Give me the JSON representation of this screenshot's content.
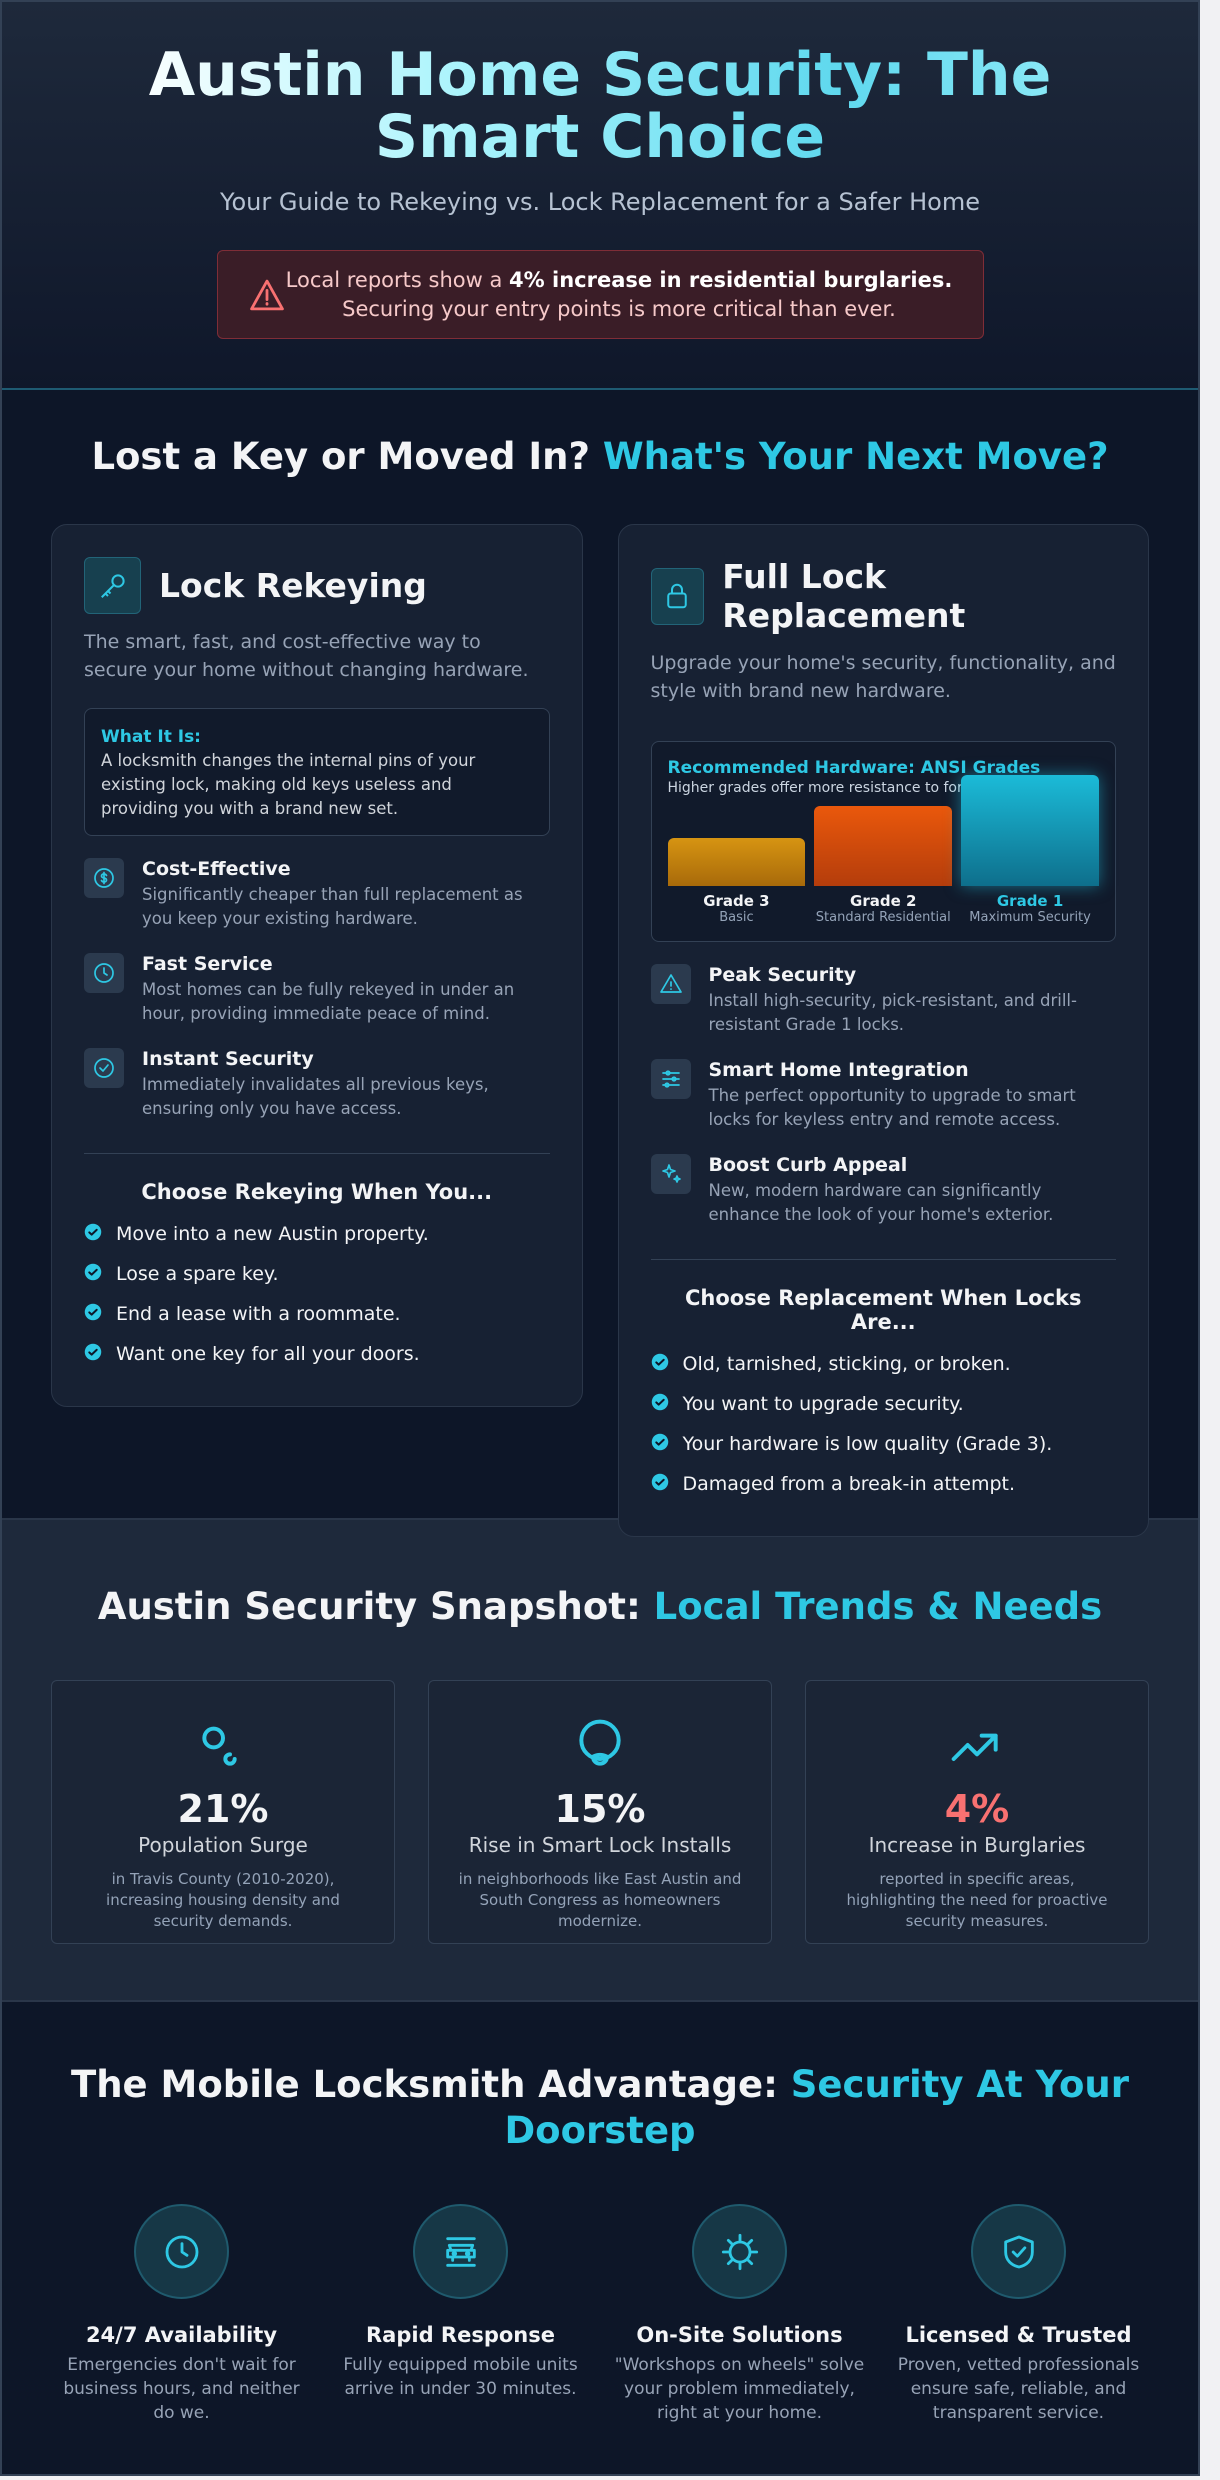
{
  "header": {
    "title_part1": "Austin Home Security:",
    "title_part2": "The Smart Choice",
    "subtitle": "Your Guide to Rekeying vs. Lock Replacement for a Safer Home",
    "alert": {
      "text_before": "Local reports show a",
      "bold": "4% increase in residential burglaries.",
      "text_after": "Securing your entry points is more critical than ever."
    }
  },
  "decision": {
    "heading_part1": "Lost a Key or Moved In?",
    "heading_part2": "What's Your Next Move?",
    "rekeying": {
      "title": "Lock Rekeying",
      "description": "The smart, fast, and cost-effective way to secure your home without changing hardware.",
      "what_it_is": {
        "label": "What It Is:",
        "text": "A locksmith changes the internal pins of your existing lock, making old keys useless and providing you with a brand new set."
      },
      "features": [
        {
          "title": "Cost-Effective",
          "text": "Significantly cheaper than full replacement as you keep your existing hardware."
        },
        {
          "title": "Fast Service",
          "text": "Most homes can be fully rekeyed in under an hour, providing immediate peace of mind."
        },
        {
          "title": "Instant Security",
          "text": "Immediately invalidates all previous keys, ensuring only you have access."
        }
      ],
      "choose_heading": "Choose Rekeying When You...",
      "choose_items": [
        "Move into a new Austin property.",
        "Lose a spare key.",
        "End a lease with a roommate.",
        "Want one key for all your doors."
      ]
    },
    "replacement": {
      "title": "Full Lock Replacement",
      "description": "Upgrade your home's security, functionality, and style with brand new hardware.",
      "hardware": {
        "title": "Recommended Hardware: ANSI Grades",
        "subtitle": "Higher grades offer more resistance to force.",
        "grades": [
          {
            "name": "Grade 3",
            "label": "Basic"
          },
          {
            "name": "Grade 2",
            "label": "Standard Residential"
          },
          {
            "name": "Grade 1",
            "label": "Maximum Security"
          }
        ]
      },
      "features": [
        {
          "title": "Peak Security",
          "text": "Install high-security, pick-resistant, and drill-resistant Grade 1 locks."
        },
        {
          "title": "Smart Home Integration",
          "text": "The perfect opportunity to upgrade to smart locks for keyless entry and remote access."
        },
        {
          "title": "Boost Curb Appeal",
          "text": "New, modern hardware can significantly enhance the look of your home's exterior."
        }
      ],
      "choose_heading": "Choose Replacement When Locks Are...",
      "choose_items": [
        "Old, tarnished, sticking, or broken.",
        "You want to upgrade security.",
        "Your hardware is low quality (Grade 3).",
        "Damaged from a break-in attempt."
      ]
    }
  },
  "snapshot": {
    "heading_part1": "Austin Security Snapshot:",
    "heading_part2": "Local Trends & Needs",
    "stats": [
      {
        "value": "21%",
        "label": "Population Surge",
        "text": "in Travis County (2010-2020), increasing housing density and security demands."
      },
      {
        "value": "15%",
        "label": "Rise in Smart Lock Installs",
        "text": "in neighborhoods like East Austin and South Congress as homeowners modernize."
      },
      {
        "value": "4%",
        "label": "Increase in Burglaries",
        "text": "reported in specific areas, highlighting the need for proactive security measures."
      }
    ]
  },
  "advantage": {
    "heading_part1": "The Mobile Locksmith Advantage:",
    "heading_part2": "Security At Your Doorstep",
    "items": [
      {
        "title": "24/7 Availability",
        "text": "Emergencies don't wait for business hours, and neither do we."
      },
      {
        "title": "Rapid Response",
        "text": "Fully equipped mobile units arrive in under 30 minutes."
      },
      {
        "title": "On-Site Solutions",
        "text": "\"Workshops on wheels\" solve your problem immediately, right at your home."
      },
      {
        "title": "Licensed & Trusted",
        "text": "Proven, vetted professionals ensure safe, reliable, and transparent service."
      }
    ]
  }
}
